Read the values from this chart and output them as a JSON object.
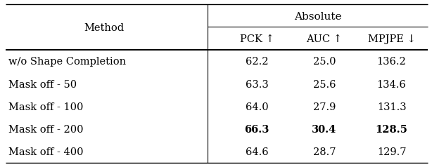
{
  "title": "Absolute",
  "col_headers": [
    "Method",
    "PCK ↑",
    "AUC ↑",
    "MPJPE ↓"
  ],
  "rows": [
    [
      "w/o Shape Completion",
      "62.2",
      "25.0",
      "136.2"
    ],
    [
      "Mask off - 50",
      "63.3",
      "25.6",
      "134.6"
    ],
    [
      "Mask off - 100",
      "64.0",
      "27.9",
      "131.3"
    ],
    [
      "Mask off - 200",
      "66.3",
      "30.4",
      "128.5"
    ],
    [
      "Mask off - 400",
      "64.6",
      "28.7",
      "129.7"
    ]
  ],
  "bold_row": 3,
  "bold_cols": [
    1,
    2,
    3
  ],
  "bg_color": "#ffffff",
  "text_color": "#000000",
  "font_size": 10.5,
  "header_font_size": 10.5,
  "fig_width": 6.14,
  "fig_height": 2.38,
  "dpi": 100
}
